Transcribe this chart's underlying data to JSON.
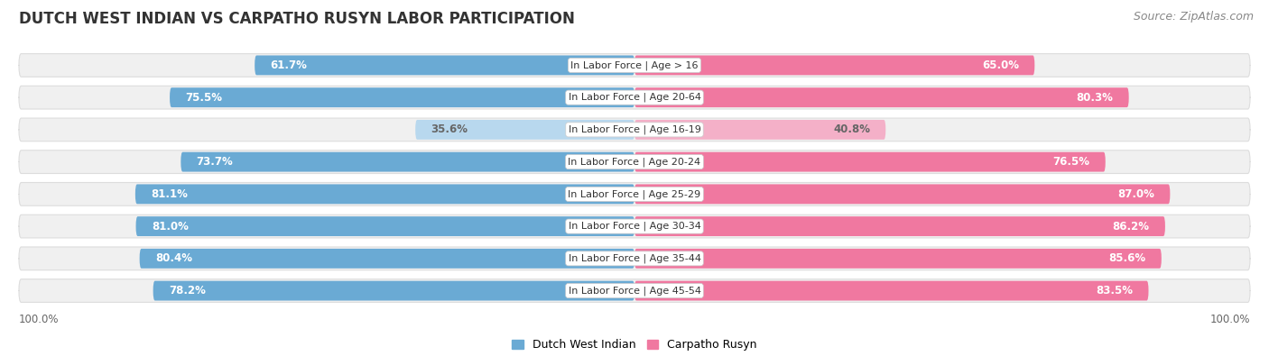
{
  "title": "DUTCH WEST INDIAN VS CARPATHO RUSYN LABOR PARTICIPATION",
  "source": "Source: ZipAtlas.com",
  "categories": [
    "In Labor Force | Age > 16",
    "In Labor Force | Age 20-64",
    "In Labor Force | Age 16-19",
    "In Labor Force | Age 20-24",
    "In Labor Force | Age 25-29",
    "In Labor Force | Age 30-34",
    "In Labor Force | Age 35-44",
    "In Labor Force | Age 45-54"
  ],
  "dutch_values": [
    61.7,
    75.5,
    35.6,
    73.7,
    81.1,
    81.0,
    80.4,
    78.2
  ],
  "carpatho_values": [
    65.0,
    80.3,
    40.8,
    76.5,
    87.0,
    86.2,
    85.6,
    83.5
  ],
  "dutch_color_dark": "#6aaad4",
  "dutch_color_light": "#b8d8ee",
  "carpatho_color_dark": "#f078a0",
  "carpatho_color_light": "#f4b0c8",
  "row_bg_color": "#f0f0f0",
  "row_border_color": "#dddddd",
  "fig_bg_color": "#ffffff",
  "title_color": "#333333",
  "source_color": "#888888",
  "label_white": "#ffffff",
  "label_dark": "#666666",
  "legend_dutch": "Dutch West Indian",
  "legend_carpatho": "Carpatho Rusyn",
  "title_fontsize": 12,
  "source_fontsize": 9,
  "bar_label_fontsize": 8.5,
  "category_fontsize": 8,
  "legend_fontsize": 9,
  "max_value": 100.0
}
